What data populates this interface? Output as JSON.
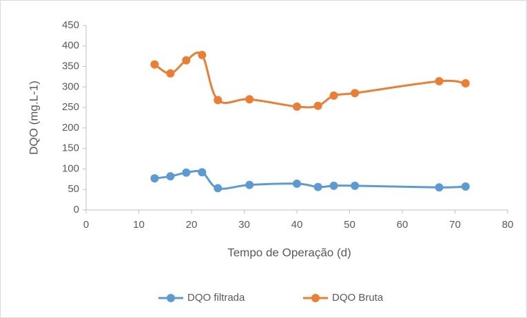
{
  "chart_data": {
    "type": "scatter",
    "x_label": "Tempo de Operação (d)",
    "y_label": "DQO (mg.L-1)",
    "x": [
      13,
      16,
      19,
      22,
      25,
      31,
      40,
      44,
      47,
      51,
      67,
      72
    ],
    "series": [
      {
        "name": "DQO filtrada",
        "color": "#5b9bd5",
        "values": [
          77,
          82,
          91,
          92,
          53,
          61,
          64,
          56,
          59,
          59,
          55,
          57
        ]
      },
      {
        "name": "DQO Bruta",
        "color": "#ed7d31",
        "values": [
          355,
          333,
          365,
          378,
          268,
          270,
          252,
          254,
          279,
          285,
          314,
          309
        ]
      }
    ],
    "xlim": [
      0,
      80
    ],
    "xticks": [
      0,
      10,
      20,
      30,
      40,
      50,
      60,
      70,
      80
    ],
    "ylim": [
      0,
      450
    ],
    "yticks": [
      0,
      50,
      100,
      150,
      200,
      250,
      300,
      350,
      400,
      450
    ],
    "grid": false,
    "smooth": true,
    "legend": "bottom"
  }
}
